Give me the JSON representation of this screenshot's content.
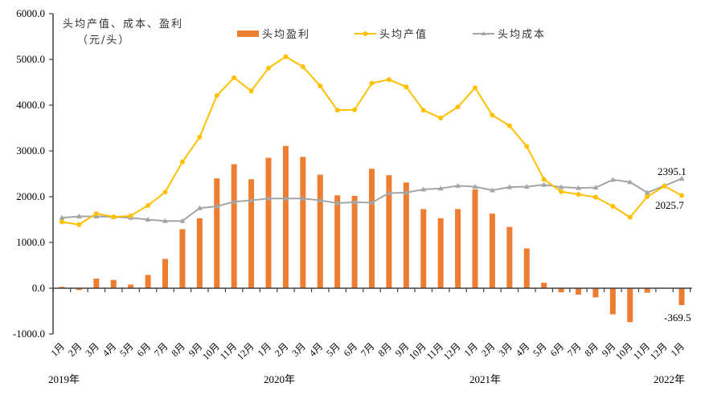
{
  "chart_data": {
    "type": "bar+line",
    "title": "",
    "ylabel": "头均产值、成本、盈利（元/头）",
    "ylabel_line1": "头均产值、成本、盈利",
    "ylabel_line2": "（元/头）",
    "ylim": [
      -1000,
      6000
    ],
    "yticks": [
      "6000.0",
      "5000.0",
      "4000.0",
      "3000.0",
      "2000.0",
      "1000.0",
      "0.0",
      "-1000.0"
    ],
    "ytick_values": [
      6000,
      5000,
      4000,
      3000,
      2000,
      1000,
      0,
      -1000
    ],
    "legend": [
      {
        "name": "头均盈利",
        "type": "bar",
        "color": "#ED7D31"
      },
      {
        "name": "头均产值",
        "type": "line",
        "color": "#FFC000"
      },
      {
        "name": "头均成本",
        "type": "line",
        "color": "#A5A5A5"
      }
    ],
    "categories": [
      "1月",
      "2月",
      "3月",
      "4月",
      "5月",
      "6月",
      "7月",
      "8月",
      "9月",
      "10月",
      "11月",
      "12月",
      "1月",
      "2月",
      "3月",
      "4月",
      "5月",
      "6月",
      "7月",
      "8月",
      "9月",
      "10月",
      "11月",
      "12月",
      "1月",
      "2月",
      "3月",
      "4月",
      "5月",
      "6月",
      "7月",
      "8月",
      "9月",
      "10月",
      "11月",
      "12月",
      "1月"
    ],
    "year_groups": [
      {
        "label": "2019年",
        "start_index": 0
      },
      {
        "label": "2020年",
        "start_index": 12
      },
      {
        "label": "2021年",
        "start_index": 24
      },
      {
        "label": "2022年",
        "start_index": 36
      }
    ],
    "series": [
      {
        "name": "头均盈利",
        "type": "bar",
        "color": "#ED7D31",
        "values": [
          30,
          -40,
          210,
          180,
          80,
          290,
          640,
          1290,
          1530,
          2400,
          2710,
          2380,
          2850,
          3110,
          2870,
          2480,
          2030,
          2020,
          2610,
          2470,
          2310,
          1730,
          1530,
          1730,
          2160,
          1630,
          1340,
          870,
          120,
          -90,
          -140,
          -200,
          -570,
          -740,
          -100,
          0,
          -369.5
        ]
      },
      {
        "name": "头均产值",
        "type": "line",
        "color": "#FFC000",
        "values": [
          1450,
          1390,
          1630,
          1560,
          1580,
          1810,
          2100,
          2760,
          3300,
          4210,
          4600,
          4310,
          4810,
          5060,
          4840,
          4420,
          3890,
          3900,
          4480,
          4560,
          4400,
          3890,
          3720,
          3960,
          4380,
          3780,
          3550,
          3100,
          2380,
          2110,
          2050,
          1990,
          1790,
          1550,
          2000,
          2230,
          2025.7
        ]
      },
      {
        "name": "头均成本",
        "type": "line",
        "color": "#A5A5A5",
        "values": [
          1540,
          1570,
          1570,
          1560,
          1540,
          1500,
          1470,
          1470,
          1750,
          1790,
          1890,
          1920,
          1960,
          1960,
          1960,
          1920,
          1860,
          1880,
          1870,
          2080,
          2090,
          2160,
          2180,
          2240,
          2220,
          2140,
          2210,
          2220,
          2260,
          2210,
          2190,
          2200,
          2370,
          2320,
          2090,
          2240,
          2395.1
        ]
      }
    ],
    "annotations": [
      {
        "text": "2395.1",
        "series": "头均成本",
        "index": 36
      },
      {
        "text": "2025.7",
        "series": "头均产值",
        "index": 36
      },
      {
        "text": "-369.5",
        "series": "头均盈利",
        "index": 36
      }
    ],
    "grid": false,
    "legend_position": "top"
  }
}
